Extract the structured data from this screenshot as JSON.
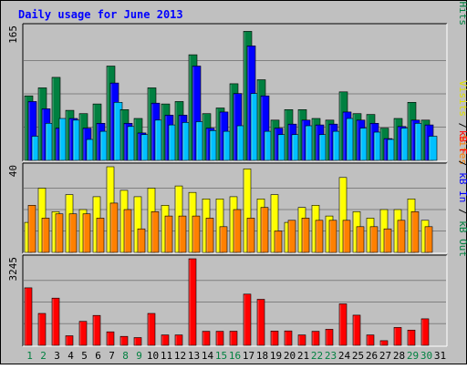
{
  "chart_data": {
    "type": "bar",
    "title": "Daily usage for June 2013",
    "categories": [
      "1",
      "2",
      "3",
      "4",
      "5",
      "6",
      "7",
      "8",
      "9",
      "10",
      "11",
      "12",
      "13",
      "14",
      "15",
      "16",
      "17",
      "18",
      "19",
      "20",
      "21",
      "22",
      "23",
      "24",
      "25",
      "26",
      "27",
      "28",
      "29",
      "30",
      "31"
    ],
    "weekend_days": [
      "1",
      "2",
      "8",
      "9",
      "15",
      "16",
      "22",
      "23",
      "29",
      "30"
    ],
    "grid": true,
    "panels": [
      {
        "id": "hits-panel",
        "ymax_label": "165",
        "ylim": [
          0,
          165
        ],
        "right_label": [
          {
            "text": "Pages",
            "color": "#00c0ff"
          },
          {
            "text": " / ",
            "color": "#000000"
          },
          {
            "text": "Files",
            "color": "#0000ff"
          },
          {
            "text": " / ",
            "color": "#000000"
          },
          {
            "text": "Hits",
            "color": "#008040"
          }
        ],
        "series": [
          {
            "name": "Hits",
            "color": "#008040",
            "values": [
              80,
              90,
              103,
              62,
              58,
              70,
              117,
              63,
              52,
              90,
              70,
              73,
              131,
              58,
              65,
              95,
              160,
              100,
              50,
              63,
              63,
              52,
              50,
              85,
              58,
              57,
              40,
              52,
              72,
              50,
              null
            ]
          },
          {
            "name": "Files",
            "color": "#0000ff",
            "values": [
              73,
              64,
              40,
              52,
              40,
              46,
              96,
              46,
              34,
              71,
              56,
              56,
              117,
              40,
              60,
              83,
              142,
              80,
              40,
              45,
              50,
              44,
              45,
              60,
              50,
              46,
              27,
              42,
              50,
              44,
              null
            ]
          },
          {
            "name": "Pages",
            "color": "#00c0ff",
            "values": [
              30,
              46,
              52,
              50,
              26,
              36,
              72,
              42,
              32,
              50,
              44,
              47,
              48,
              37,
              36,
              43,
              83,
              36,
              32,
              32,
              43,
              32,
              36,
              52,
              40,
              35,
              26,
              40,
              46,
              30,
              null
            ]
          }
        ]
      },
      {
        "id": "visits-panel",
        "ymax_label": "40",
        "ylim": [
          0,
          40
        ],
        "right_label": [
          {
            "text": "Visits",
            "color": "#e0e000"
          },
          {
            "text": " / ",
            "color": "#000000"
          },
          {
            "text": "Sites",
            "color": "#ff8000"
          }
        ],
        "series": [
          {
            "name": "Visits",
            "color": "#ffff00",
            "values": [
              14,
              30,
              19,
              27,
              20,
              26,
              40,
              29,
              26,
              30,
              22,
              31,
              28,
              25,
              25,
              26,
              39,
              25,
              27,
              14,
              21,
              22,
              17,
              35,
              19,
              16,
              20,
              20,
              25,
              15,
              null
            ]
          },
          {
            "name": "Sites",
            "color": "#ff8000",
            "values": [
              22,
              16,
              18,
              18,
              18,
              16,
              23,
              20,
              11,
              19,
              17,
              17,
              17,
              16,
              12,
              20,
              16,
              21,
              10,
              15,
              16,
              15,
              15,
              15,
              12,
              12,
              11,
              15,
              19,
              12,
              null
            ]
          }
        ]
      },
      {
        "id": "kbytes-panel",
        "ymax_label": "3245",
        "ylim": [
          0,
          3245
        ],
        "right_label": [
          {
            "text": "kB F",
            "color": "#ff0000"
          },
          {
            "text": " / ",
            "color": "#000000"
          },
          {
            "text": "kB In",
            "color": "#0000ff"
          },
          {
            "text": " / ",
            "color": "#000000"
          },
          {
            "text": "kB Out",
            "color": "#008040"
          }
        ],
        "series": [
          {
            "name": "kB F",
            "color": "#ff0000",
            "values": [
              2155,
              1195,
              1770,
              360,
              900,
              1122,
              505,
              335,
              290,
              1195,
              390,
              390,
              3245,
              525,
              525,
              530,
              1920,
              1725,
              535,
              540,
              390,
              525,
              600,
              1555,
              1130,
              390,
              175,
              670,
              570,
              995,
              null
            ]
          }
        ]
      }
    ]
  }
}
